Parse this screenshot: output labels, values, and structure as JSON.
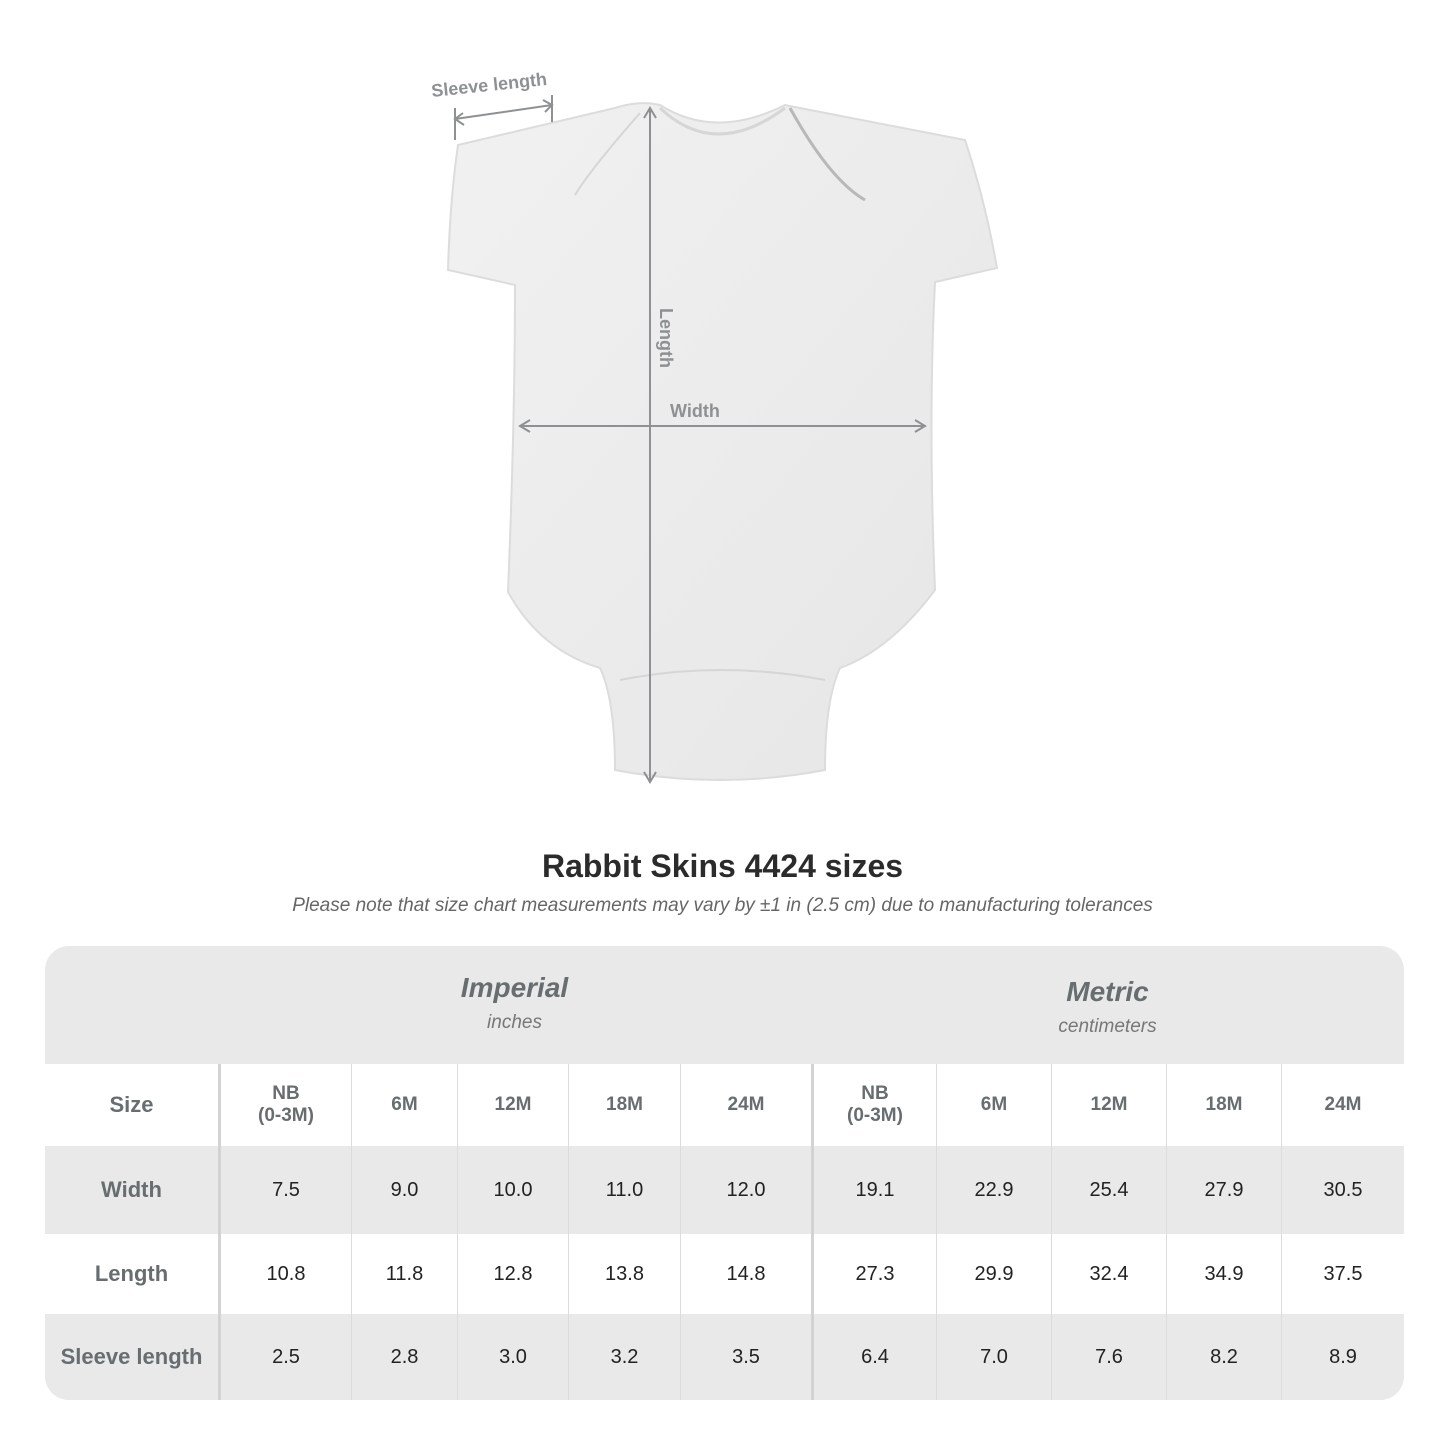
{
  "diagram": {
    "sleeve_label": "Sleeve length",
    "length_label": "Length",
    "width_label": "Width"
  },
  "title": "Rabbit Skins 4424 sizes",
  "note": "Please note that size chart measurements may vary by ±1 in (2.5 cm) due to manufacturing tolerances",
  "table": {
    "imperial": {
      "name": "Imperial",
      "unit": "inches"
    },
    "metric": {
      "name": "Metric",
      "unit": "centimeters"
    },
    "size_label": "Size",
    "sizes": [
      "NB (0-3M)",
      "6M",
      "12M",
      "18M",
      "24M",
      "NB (0-3M)",
      "6M",
      "12M",
      "18M",
      "24M"
    ],
    "rows": [
      {
        "label": "Width",
        "values": [
          "7.5",
          "9.0",
          "10.0",
          "11.0",
          "12.0",
          "19.1",
          "22.9",
          "25.4",
          "27.9",
          "30.5"
        ]
      },
      {
        "label": "Length",
        "values": [
          "10.8",
          "11.8",
          "12.8",
          "13.8",
          "14.8",
          "27.3",
          "29.9",
          "32.4",
          "34.9",
          "37.5"
        ]
      },
      {
        "label": "Sleeve length",
        "values": [
          "2.5",
          "2.8",
          "3.0",
          "3.2",
          "3.5",
          "6.4",
          "7.0",
          "7.6",
          "8.2",
          "8.9"
        ]
      }
    ]
  },
  "colors": {
    "header_bg": "#e9e9e9",
    "label_text": "#686d70",
    "measure_lines": "#8e9193"
  }
}
